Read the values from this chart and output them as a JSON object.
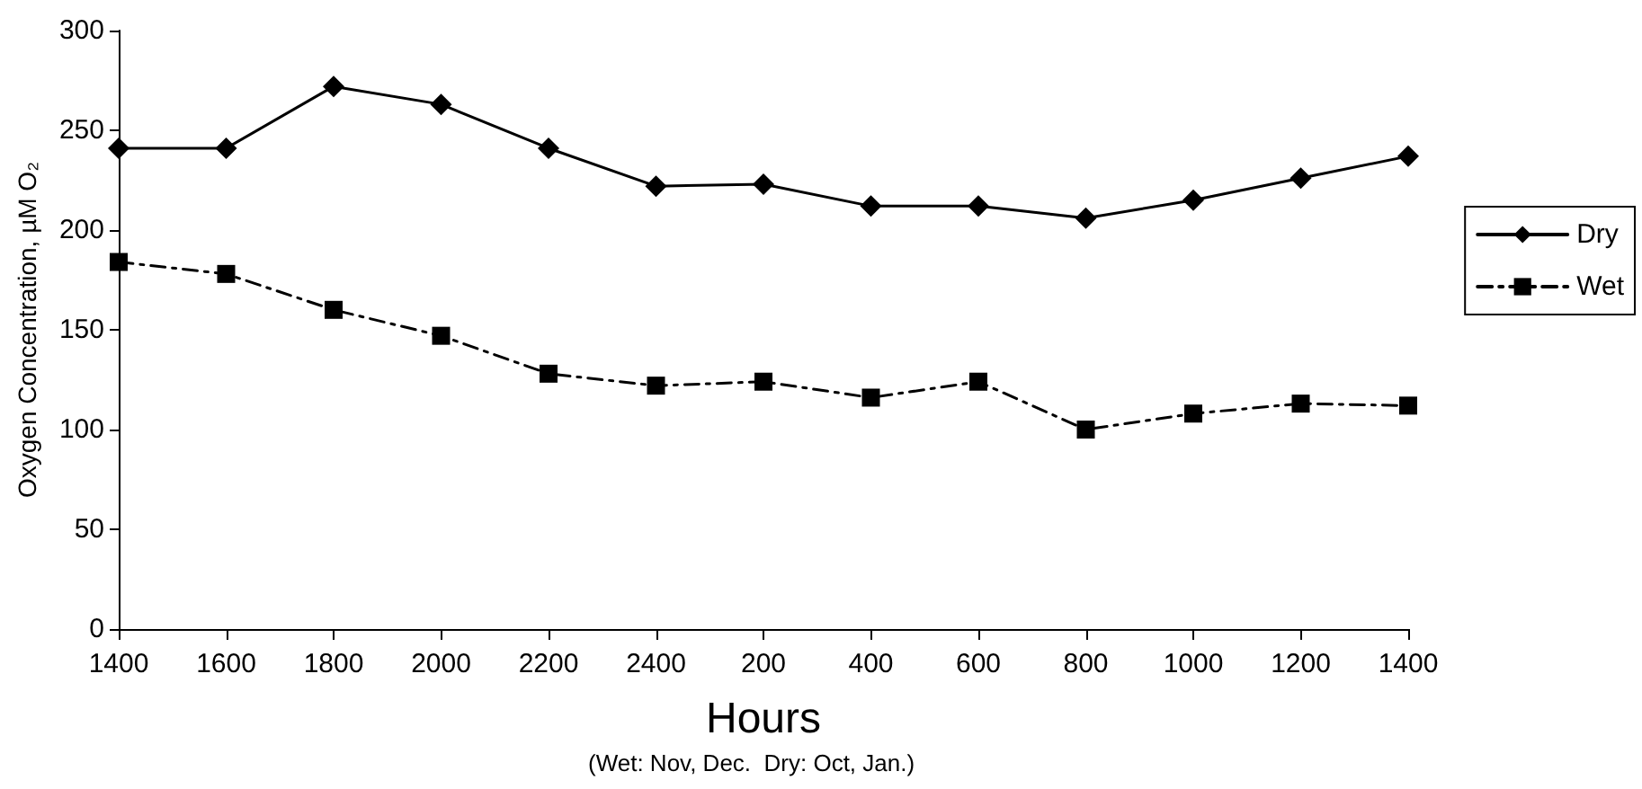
{
  "chart_data": {
    "type": "line",
    "xlabel": "Hours",
    "ylabel": "Oxygen Concentration, µM O₂",
    "annotations": [
      "(Wet: Nov, Dec.  Dry: Oct, Jan.)"
    ],
    "categories": [
      "1400",
      "1600",
      "1800",
      "2000",
      "2200",
      "2400",
      "200",
      "400",
      "600",
      "800",
      "1000",
      "1200",
      "1400"
    ],
    "series": [
      {
        "name": "Dry",
        "color": "#000000",
        "marker": "diamond",
        "line_style": "solid",
        "values": [
          241,
          241,
          272,
          263,
          241,
          222,
          223,
          212,
          212,
          206,
          215,
          226,
          237
        ]
      },
      {
        "name": "Wet",
        "color": "#000000",
        "marker": "square",
        "line_style": "dashed",
        "values": [
          184,
          178,
          160,
          147,
          128,
          122,
          124,
          116,
          124,
          100,
          108,
          113,
          112
        ]
      }
    ],
    "ylim": [
      0,
      300
    ],
    "yticks": [
      0,
      50,
      100,
      150,
      200,
      250,
      300
    ],
    "grid": false,
    "legend": "right"
  }
}
